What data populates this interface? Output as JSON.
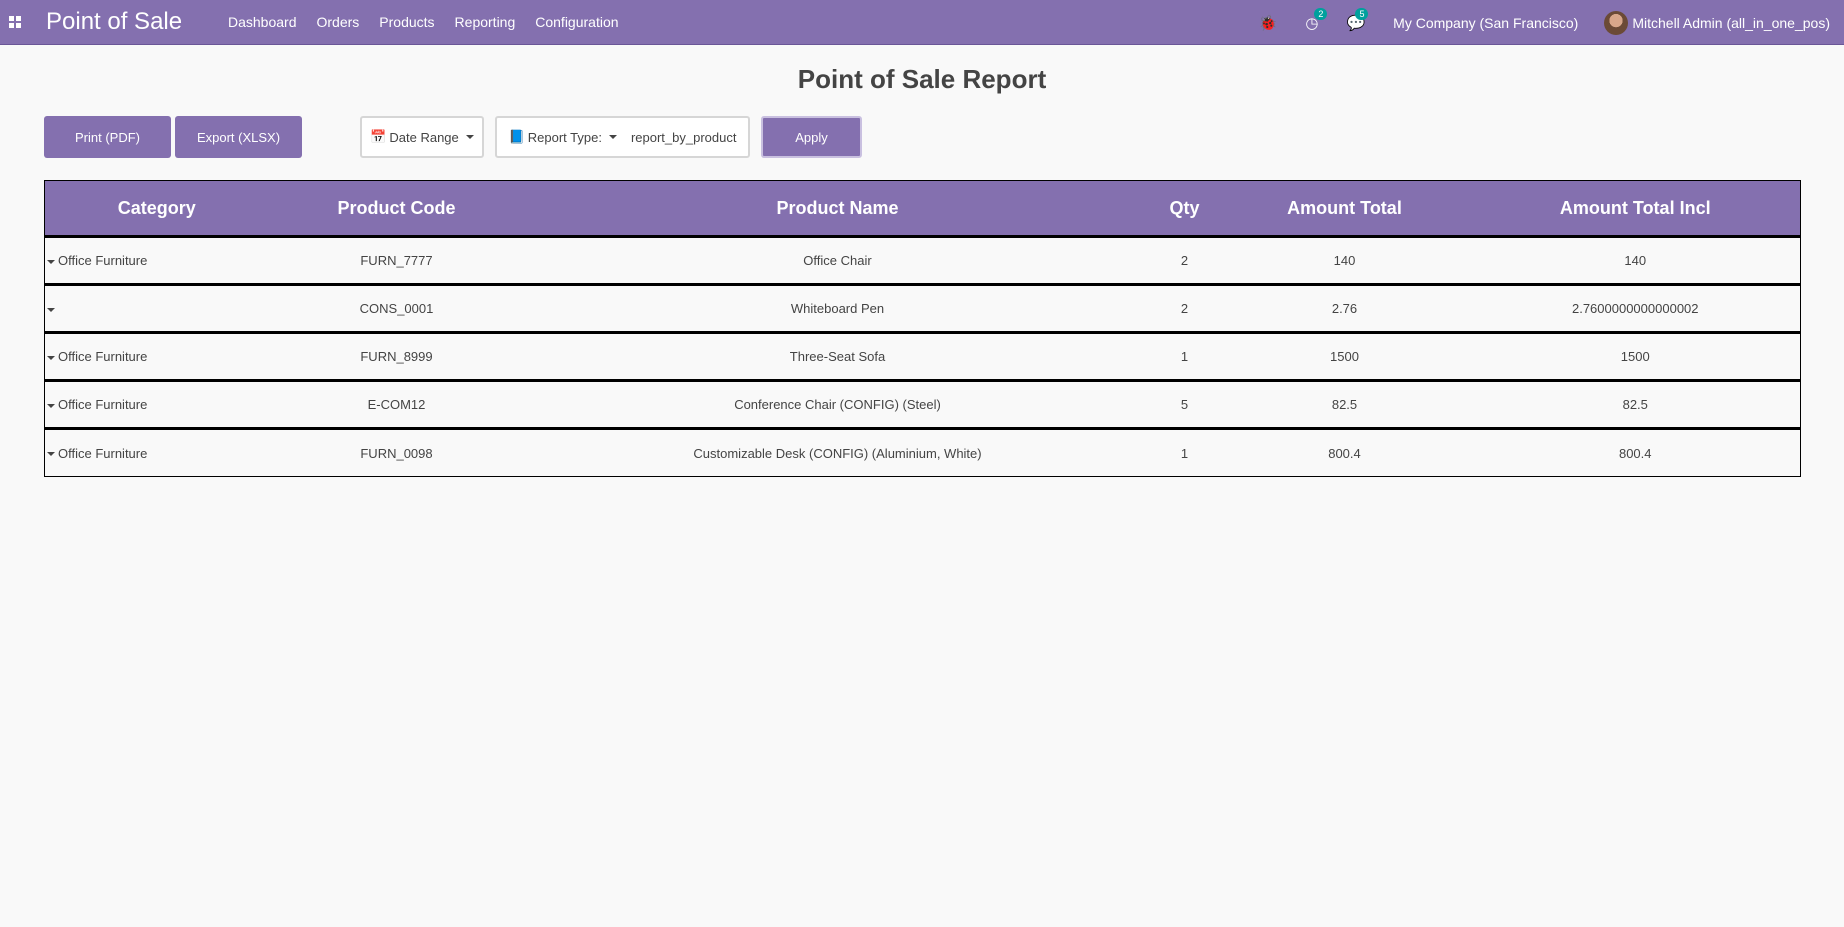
{
  "navbar": {
    "app_title": "Point of Sale",
    "menu": [
      "Dashboard",
      "Orders",
      "Products",
      "Reporting",
      "Configuration"
    ],
    "activity_count": "2",
    "message_count": "5",
    "company": "My Company (San Francisco)",
    "user": "Mitchell Admin (all_in_one_pos)",
    "color": "#8470af"
  },
  "page": {
    "title": "Point of Sale Report"
  },
  "toolbar": {
    "print": "Print (PDF)",
    "export": "Export (XLSX)",
    "date_range": "Date Range",
    "report_type_label": "Report Type:",
    "report_type_value": "report_by_product",
    "apply": "Apply"
  },
  "table": {
    "headers": [
      "Category",
      "Product Code",
      "Product Name",
      "Qty",
      "Amount Total",
      "Amount Total Incl"
    ],
    "rows": [
      [
        "Office Furniture",
        "FURN_7777",
        "Office Chair",
        "2",
        "140",
        "140"
      ],
      [
        "",
        "CONS_0001",
        "Whiteboard Pen",
        "2",
        "2.76",
        "2.7600000000000002"
      ],
      [
        "Office Furniture",
        "FURN_8999",
        "Three-Seat Sofa",
        "1",
        "1500",
        "1500"
      ],
      [
        "Office Furniture",
        "E-COM12",
        "Conference Chair (CONFIG) (Steel)",
        "5",
        "82.5",
        "82.5"
      ],
      [
        "Office Furniture",
        "FURN_0098",
        "Customizable Desk (CONFIG) (Aluminium, White)",
        "1",
        "800.4",
        "800.4"
      ]
    ]
  }
}
